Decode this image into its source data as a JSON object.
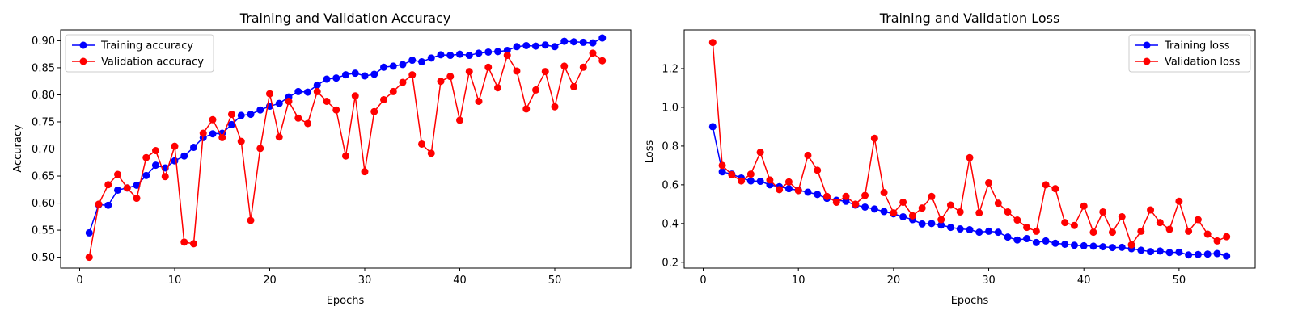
{
  "charts": {
    "left": {
      "title": "Training and Validation Accuracy",
      "xlabel": "Epochs",
      "ylabel": "Accuracy"
    },
    "right": {
      "title": "Training and Validation Loss",
      "xlabel": "Epochs",
      "ylabel": "Loss"
    }
  },
  "chart_data": [
    {
      "type": "line",
      "title": "Training and Validation Accuracy",
      "xlabel": "Epochs",
      "ylabel": "Accuracy",
      "xlim": [
        -2.0,
        58.0
      ],
      "ylim": [
        0.48,
        0.92
      ],
      "xticks": [
        0,
        10,
        20,
        30,
        40,
        50
      ],
      "yticks": [
        0.5,
        0.55,
        0.6,
        0.65,
        0.7,
        0.75,
        0.8,
        0.85,
        0.9
      ],
      "grid": false,
      "legend": "upper left",
      "x": [
        1,
        2,
        3,
        4,
        5,
        6,
        7,
        8,
        9,
        10,
        11,
        12,
        13,
        14,
        15,
        16,
        17,
        18,
        19,
        20,
        21,
        22,
        23,
        24,
        25,
        26,
        27,
        28,
        29,
        30,
        31,
        32,
        33,
        34,
        35,
        36,
        37,
        38,
        39,
        40,
        41,
        42,
        43,
        44,
        45,
        46,
        47,
        48,
        49,
        50,
        51,
        52,
        53,
        54,
        55
      ],
      "series": [
        {
          "name": "Training accuracy",
          "color": "#0000ff",
          "values": [
            0.545,
            0.597,
            0.596,
            0.624,
            0.628,
            0.633,
            0.651,
            0.67,
            0.665,
            0.678,
            0.687,
            0.703,
            0.721,
            0.728,
            0.729,
            0.745,
            0.762,
            0.764,
            0.772,
            0.779,
            0.784,
            0.796,
            0.806,
            0.805,
            0.818,
            0.829,
            0.831,
            0.837,
            0.84,
            0.835,
            0.838,
            0.851,
            0.853,
            0.856,
            0.864,
            0.861,
            0.868,
            0.874,
            0.873,
            0.875,
            0.873,
            0.877,
            0.879,
            0.88,
            0.882,
            0.889,
            0.891,
            0.89,
            0.892,
            0.889,
            0.899,
            0.898,
            0.897,
            0.896,
            0.905
          ]
        },
        {
          "name": "Validation accuracy",
          "color": "#ff0000",
          "values": [
            0.5,
            0.598,
            0.634,
            0.653,
            0.628,
            0.609,
            0.684,
            0.697,
            0.649,
            0.705,
            0.528,
            0.525,
            0.729,
            0.754,
            0.721,
            0.764,
            0.714,
            0.568,
            0.701,
            0.802,
            0.722,
            0.788,
            0.757,
            0.747,
            0.806,
            0.788,
            0.772,
            0.687,
            0.798,
            0.658,
            0.769,
            0.791,
            0.806,
            0.823,
            0.837,
            0.709,
            0.692,
            0.825,
            0.834,
            0.753,
            0.843,
            0.788,
            0.851,
            0.813,
            0.873,
            0.844,
            0.774,
            0.809,
            0.843,
            0.778,
            0.853,
            0.815,
            0.851,
            0.877,
            0.863
          ]
        }
      ]
    },
    {
      "type": "line",
      "title": "Training and Validation Loss",
      "xlabel": "Epochs",
      "ylabel": "Loss",
      "xlim": [
        -2.0,
        58.0
      ],
      "ylim": [
        0.17,
        1.4
      ],
      "xticks": [
        0,
        10,
        20,
        30,
        40,
        50
      ],
      "yticks": [
        0.2,
        0.4,
        0.6,
        0.8,
        1.0,
        1.2
      ],
      "grid": false,
      "legend": "upper right",
      "x": [
        1,
        2,
        3,
        4,
        5,
        6,
        7,
        8,
        9,
        10,
        11,
        12,
        13,
        14,
        15,
        16,
        17,
        18,
        19,
        20,
        21,
        22,
        23,
        24,
        25,
        26,
        27,
        28,
        29,
        30,
        31,
        32,
        33,
        34,
        35,
        36,
        37,
        38,
        39,
        40,
        41,
        42,
        43,
        44,
        45,
        46,
        47,
        48,
        49,
        50,
        51,
        52,
        53,
        54,
        55
      ],
      "series": [
        {
          "name": "Training loss",
          "color": "#0000ff",
          "values": [
            0.9,
            0.667,
            0.655,
            0.635,
            0.62,
            0.618,
            0.6,
            0.59,
            0.58,
            0.572,
            0.562,
            0.55,
            0.53,
            0.52,
            0.515,
            0.495,
            0.485,
            0.475,
            0.462,
            0.45,
            0.435,
            0.42,
            0.398,
            0.4,
            0.392,
            0.38,
            0.372,
            0.368,
            0.355,
            0.36,
            0.355,
            0.33,
            0.315,
            0.322,
            0.302,
            0.31,
            0.298,
            0.293,
            0.288,
            0.285,
            0.283,
            0.28,
            0.276,
            0.277,
            0.27,
            0.262,
            0.255,
            0.258,
            0.25,
            0.252,
            0.238,
            0.24,
            0.242,
            0.245,
            0.232
          ]
        },
        {
          "name": "Validation loss",
          "color": "#ff0000",
          "values": [
            1.335,
            0.7,
            0.652,
            0.62,
            0.655,
            0.768,
            0.625,
            0.575,
            0.615,
            0.57,
            0.752,
            0.675,
            0.54,
            0.51,
            0.54,
            0.5,
            0.545,
            0.84,
            0.56,
            0.455,
            0.51,
            0.44,
            0.48,
            0.54,
            0.42,
            0.495,
            0.46,
            0.74,
            0.455,
            0.61,
            0.505,
            0.46,
            0.418,
            0.38,
            0.36,
            0.6,
            0.58,
            0.405,
            0.39,
            0.49,
            0.355,
            0.46,
            0.355,
            0.435,
            0.29,
            0.36,
            0.47,
            0.405,
            0.37,
            0.515,
            0.36,
            0.42,
            0.345,
            0.31,
            0.332
          ]
        }
      ]
    }
  ]
}
